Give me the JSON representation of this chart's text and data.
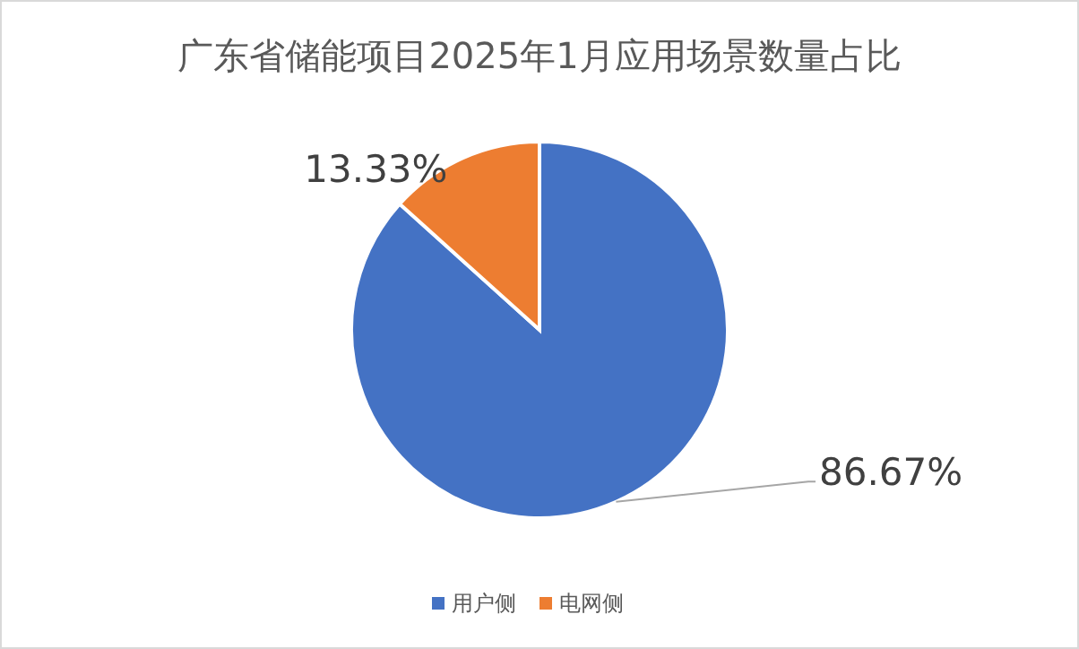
{
  "chart_data": {
    "type": "pie",
    "title": "广东省储能项目2025年1月应用场景数量占比",
    "categories": [
      "用户侧",
      "电网侧"
    ],
    "values": [
      86.67,
      13.33
    ],
    "value_labels": [
      "86.67%",
      "13.33%"
    ],
    "colors": [
      "#4472c4",
      "#ed7d31"
    ],
    "legend": "bottom"
  }
}
